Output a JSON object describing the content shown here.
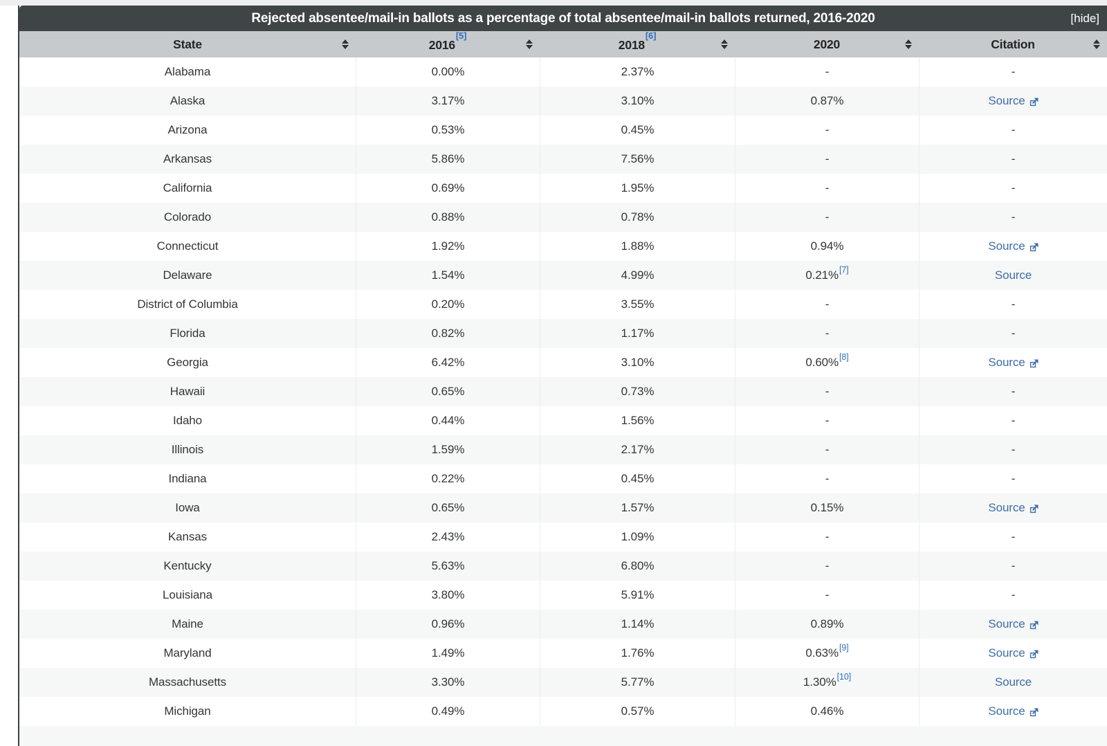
{
  "title_bar": {
    "title": "Rejected absentee/mail-in ballots as a percentage of total absentee/mail-in ballots returned, 2016-2020",
    "hide_label": "[hide]"
  },
  "table": {
    "source_label": "Source",
    "dash": "-",
    "columns": [
      {
        "label": "State",
        "ref": ""
      },
      {
        "label": "2016",
        "ref": "[5]"
      },
      {
        "label": "2018",
        "ref": "[6]"
      },
      {
        "label": "2020",
        "ref": ""
      },
      {
        "label": "Citation",
        "ref": ""
      }
    ],
    "rows": [
      {
        "state": "Alabama",
        "v2016": "0.00%",
        "v2018": "2.37%",
        "v2020": "-",
        "ref2020": "",
        "citation": "dash"
      },
      {
        "state": "Alaska",
        "v2016": "3.17%",
        "v2018": "3.10%",
        "v2020": "0.87%",
        "ref2020": "",
        "citation": "source-ext"
      },
      {
        "state": "Arizona",
        "v2016": "0.53%",
        "v2018": "0.45%",
        "v2020": "-",
        "ref2020": "",
        "citation": "dash"
      },
      {
        "state": "Arkansas",
        "v2016": "5.86%",
        "v2018": "7.56%",
        "v2020": "-",
        "ref2020": "",
        "citation": "dash"
      },
      {
        "state": "California",
        "v2016": "0.69%",
        "v2018": "1.95%",
        "v2020": "-",
        "ref2020": "",
        "citation": "dash"
      },
      {
        "state": "Colorado",
        "v2016": "0.88%",
        "v2018": "0.78%",
        "v2020": "-",
        "ref2020": "",
        "citation": "dash"
      },
      {
        "state": "Connecticut",
        "v2016": "1.92%",
        "v2018": "1.88%",
        "v2020": "0.94%",
        "ref2020": "",
        "citation": "source-ext"
      },
      {
        "state": "Delaware",
        "v2016": "1.54%",
        "v2018": "4.99%",
        "v2020": "0.21%",
        "ref2020": "[7]",
        "citation": "source"
      },
      {
        "state": "District of Columbia",
        "v2016": "0.20%",
        "v2018": "3.55%",
        "v2020": "-",
        "ref2020": "",
        "citation": "dash"
      },
      {
        "state": "Florida",
        "v2016": "0.82%",
        "v2018": "1.17%",
        "v2020": "-",
        "ref2020": "",
        "citation": "dash"
      },
      {
        "state": "Georgia",
        "v2016": "6.42%",
        "v2018": "3.10%",
        "v2020": "0.60%",
        "ref2020": "[8]",
        "citation": "source-ext"
      },
      {
        "state": "Hawaii",
        "v2016": "0.65%",
        "v2018": "0.73%",
        "v2020": "-",
        "ref2020": "",
        "citation": "dash"
      },
      {
        "state": "Idaho",
        "v2016": "0.44%",
        "v2018": "1.56%",
        "v2020": "-",
        "ref2020": "",
        "citation": "dash"
      },
      {
        "state": "Illinois",
        "v2016": "1.59%",
        "v2018": "2.17%",
        "v2020": "-",
        "ref2020": "",
        "citation": "dash"
      },
      {
        "state": "Indiana",
        "v2016": "0.22%",
        "v2018": "0.45%",
        "v2020": "-",
        "ref2020": "",
        "citation": "dash"
      },
      {
        "state": "Iowa",
        "v2016": "0.65%",
        "v2018": "1.57%",
        "v2020": "0.15%",
        "ref2020": "",
        "citation": "source-ext"
      },
      {
        "state": "Kansas",
        "v2016": "2.43%",
        "v2018": "1.09%",
        "v2020": "-",
        "ref2020": "",
        "citation": "dash"
      },
      {
        "state": "Kentucky",
        "v2016": "5.63%",
        "v2018": "6.80%",
        "v2020": "-",
        "ref2020": "",
        "citation": "dash"
      },
      {
        "state": "Louisiana",
        "v2016": "3.80%",
        "v2018": "5.91%",
        "v2020": "-",
        "ref2020": "",
        "citation": "dash"
      },
      {
        "state": "Maine",
        "v2016": "0.96%",
        "v2018": "1.14%",
        "v2020": "0.89%",
        "ref2020": "",
        "citation": "source-ext"
      },
      {
        "state": "Maryland",
        "v2016": "1.49%",
        "v2018": "1.76%",
        "v2020": "0.63%",
        "ref2020": "[9]",
        "citation": "source-ext"
      },
      {
        "state": "Massachusetts",
        "v2016": "3.30%",
        "v2018": "5.77%",
        "v2020": "1.30%",
        "ref2020": "[10]",
        "citation": "source"
      },
      {
        "state": "Michigan",
        "v2016": "0.49%",
        "v2018": "0.57%",
        "v2020": "0.46%",
        "ref2020": "",
        "citation": "source-ext"
      }
    ]
  },
  "colors": {
    "title_bar_bg": "#3f4447",
    "header_bg": "#c7cacc",
    "stripe_bg": "#f6f7f7",
    "link_blue": "#3d6ea7",
    "footnote_blue": "#2d6fbe",
    "text_dark": "#333536"
  },
  "chart_data": {
    "type": "table",
    "title": "Rejected absentee/mail-in ballots as a percentage of total absentee/mail-in ballots returned, 2016-2020",
    "columns": [
      "State",
      "2016[5]",
      "2018[6]",
      "2020",
      "Citation"
    ],
    "rows": [
      [
        "Alabama",
        "0.00%",
        "2.37%",
        "-",
        "-"
      ],
      [
        "Alaska",
        "3.17%",
        "3.10%",
        "0.87%",
        "Source"
      ],
      [
        "Arizona",
        "0.53%",
        "0.45%",
        "-",
        "-"
      ],
      [
        "Arkansas",
        "5.86%",
        "7.56%",
        "-",
        "-"
      ],
      [
        "California",
        "0.69%",
        "1.95%",
        "-",
        "-"
      ],
      [
        "Colorado",
        "0.88%",
        "0.78%",
        "-",
        "-"
      ],
      [
        "Connecticut",
        "1.92%",
        "1.88%",
        "0.94%",
        "Source"
      ],
      [
        "Delaware",
        "1.54%",
        "4.99%",
        "0.21%[7]",
        "Source"
      ],
      [
        "District of Columbia",
        "0.20%",
        "3.55%",
        "-",
        "-"
      ],
      [
        "Florida",
        "0.82%",
        "1.17%",
        "-",
        "-"
      ],
      [
        "Georgia",
        "6.42%",
        "3.10%",
        "0.60%[8]",
        "Source"
      ],
      [
        "Hawaii",
        "0.65%",
        "0.73%",
        "-",
        "-"
      ],
      [
        "Idaho",
        "0.44%",
        "1.56%",
        "-",
        "-"
      ],
      [
        "Illinois",
        "1.59%",
        "2.17%",
        "-",
        "-"
      ],
      [
        "Indiana",
        "0.22%",
        "0.45%",
        "-",
        "-"
      ],
      [
        "Iowa",
        "0.65%",
        "1.57%",
        "0.15%",
        "Source"
      ],
      [
        "Kansas",
        "2.43%",
        "1.09%",
        "-",
        "-"
      ],
      [
        "Kentucky",
        "5.63%",
        "6.80%",
        "-",
        "-"
      ],
      [
        "Louisiana",
        "3.80%",
        "5.91%",
        "-",
        "-"
      ],
      [
        "Maine",
        "0.96%",
        "1.14%",
        "0.89%",
        "Source"
      ],
      [
        "Maryland",
        "1.49%",
        "1.76%",
        "0.63%[9]",
        "Source"
      ],
      [
        "Massachusetts",
        "3.30%",
        "5.77%",
        "1.30%[10]",
        "Source"
      ],
      [
        "Michigan",
        "0.49%",
        "0.57%",
        "0.46%",
        "Source"
      ]
    ]
  }
}
